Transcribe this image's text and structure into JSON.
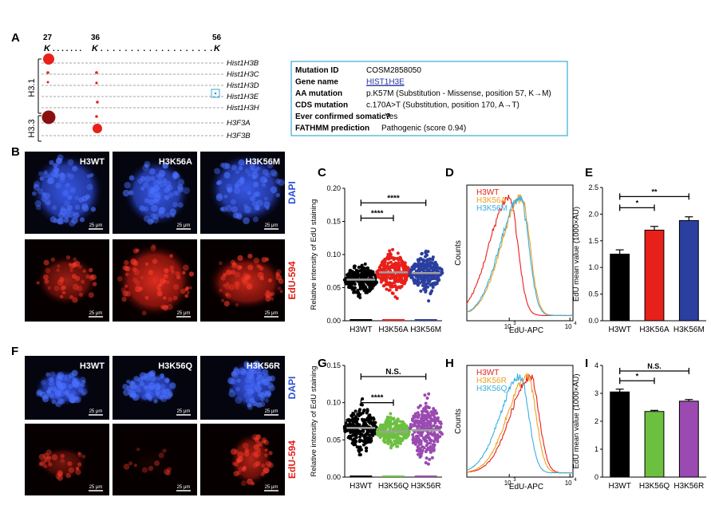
{
  "panel_letters": [
    "A",
    "B",
    "C",
    "D",
    "E",
    "F",
    "G",
    "H",
    "I"
  ],
  "panel_a": {
    "positions": [
      "27",
      "36",
      "56"
    ],
    "residue_line": [
      "K",
      ". . . . . . .",
      "K",
      ". . . . . . . . . . . . . . . . . . .",
      "K"
    ],
    "genes": [
      "Hist1H3B",
      "Hist1H3C",
      "Hist1H3D",
      "Hist1H3E",
      "Hist1H3H",
      "H3F3A",
      "H3F3B"
    ],
    "groups": [
      "H3.1",
      "H3.3"
    ],
    "mutation_table": [
      {
        "key": "Mutation ID",
        "value": "COSM2858050"
      },
      {
        "key": "Gene name",
        "value": "HIST1H3E"
      },
      {
        "key": "AA mutation",
        "value": "p.K57M (Substitution - Missense, position 57, K→M)"
      },
      {
        "key": "CDS mutation",
        "value": "c.170A>T (Substitution, position 170, A→T)"
      },
      {
        "key": "Ever confirmed somatic?",
        "value": "Yes"
      },
      {
        "key": "FATHMM prediction",
        "value": "Pathogenic (score 0.94)"
      }
    ]
  },
  "micrographs": {
    "top": {
      "labels": [
        "H3WT",
        "H3K56A",
        "H3K56M"
      ],
      "stains": [
        "DAPI",
        "EdU-594"
      ]
    },
    "bottom": {
      "labels": [
        "H3WT",
        "H3K56Q",
        "H3K56R"
      ],
      "stains": [
        "DAPI",
        "EdU-594"
      ]
    },
    "scale_bar": "25 μm",
    "colors": {
      "dapi": "#2d4fd6",
      "edu": "#e0201a"
    }
  },
  "chart_data": [
    {
      "panel": "C",
      "type": "scatter",
      "ylabel": "Relative intensity of EdU staining",
      "categories": [
        "H3WT",
        "H3K56A",
        "H3K56M"
      ],
      "ylim": [
        0,
        0.2
      ],
      "yticks": [
        "0.00",
        "0.05",
        "0.10",
        "0.15",
        "0.20"
      ],
      "series": [
        {
          "category": "H3WT",
          "mean": 0.062,
          "min": 0.035,
          "max": 0.098,
          "color": "#000000"
        },
        {
          "category": "H3K56A",
          "mean": 0.073,
          "min": 0.028,
          "max": 0.11,
          "color": "#e8201a"
        },
        {
          "category": "H3K56M",
          "mean": 0.072,
          "min": 0.03,
          "max": 0.105,
          "color": "#2a3f9e"
        }
      ],
      "significance": [
        {
          "from": "H3WT",
          "to": "H3K56A",
          "label": "****",
          "y": 0.155
        },
        {
          "from": "H3WT",
          "to": "H3K56M",
          "label": "****",
          "y": 0.178
        }
      ]
    },
    {
      "panel": "D",
      "type": "line",
      "xlabel": "EdU-APC",
      "ylabel": "Counts",
      "x_ticks": [
        "10",
        "3",
        "10",
        "4"
      ],
      "series": [
        {
          "name": "H3WT",
          "color": "#e8201a",
          "peak_log": 3.0
        },
        {
          "name": "H3K56A",
          "color": "#f0a020",
          "peak_log": 3.2
        },
        {
          "name": "H3K56M",
          "color": "#3ab0e0",
          "peak_log": 3.18
        }
      ]
    },
    {
      "panel": "E",
      "type": "bar",
      "ylabel": "EdU mean value (1000×AU)",
      "categories": [
        "H3WT",
        "H3K56A",
        "H3K56M"
      ],
      "values": [
        1.25,
        1.7,
        1.88
      ],
      "errors": [
        0.08,
        0.07,
        0.07
      ],
      "colors": [
        "#000000",
        "#e8201a",
        "#2a3f9e"
      ],
      "ylim": [
        0,
        2.5
      ],
      "yticks": [
        "0.0",
        "0.5",
        "1.0",
        "1.5",
        "2.0",
        "2.5"
      ],
      "significance": [
        {
          "from": "H3WT",
          "to": "H3K56A",
          "label": "*",
          "y": 2.12
        },
        {
          "from": "H3WT",
          "to": "H3K56M",
          "label": "**",
          "y": 2.33
        }
      ]
    },
    {
      "panel": "G",
      "type": "scatter",
      "ylabel": "Relative intensity of EdU staining",
      "categories": [
        "H3WT",
        "H3K56Q",
        "H3K56R"
      ],
      "ylim": [
        0,
        0.15
      ],
      "yticks": [
        "0.00",
        "0.05",
        "0.10",
        "0.15"
      ],
      "series": [
        {
          "category": "H3WT",
          "mean": 0.066,
          "min": 0.03,
          "max": 0.105,
          "color": "#000000"
        },
        {
          "category": "H3K56Q",
          "mean": 0.061,
          "min": 0.035,
          "max": 0.088,
          "color": "#6cc040"
        },
        {
          "category": "H3K56R",
          "mean": 0.063,
          "min": 0.005,
          "max": 0.112,
          "color": "#9a4ab0"
        }
      ],
      "significance": [
        {
          "from": "H3WT",
          "to": "H3K56Q",
          "label": "****",
          "y": 0.1
        },
        {
          "from": "H3WT",
          "to": "H3K56R",
          "label": "N.S.",
          "y": 0.135
        }
      ]
    },
    {
      "panel": "H",
      "type": "line",
      "xlabel": "EdU-APC",
      "ylabel": "Counts",
      "x_ticks": [
        "10",
        "3",
        "10",
        "4"
      ],
      "series": [
        {
          "name": "H3WT",
          "color": "#e8201a",
          "peak_log": 3.35
        },
        {
          "name": "H3K56R",
          "color": "#f0a020",
          "peak_log": 3.3
        },
        {
          "name": "H3K56Q",
          "color": "#3ab0e0",
          "peak_log": 3.18
        }
      ]
    },
    {
      "panel": "I",
      "type": "bar",
      "ylabel": "EdU mean value (1000×AU)",
      "categories": [
        "H3WT",
        "H3K56Q",
        "H3K56R"
      ],
      "values": [
        3.05,
        2.35,
        2.72
      ],
      "errors": [
        0.1,
        0.04,
        0.06
      ],
      "colors": [
        "#000000",
        "#6cc040",
        "#9a4ab0"
      ],
      "ylim": [
        0,
        4
      ],
      "yticks": [
        "0",
        "1",
        "2",
        "3",
        "4"
      ],
      "significance": [
        {
          "from": "H3WT",
          "to": "H3K56Q",
          "label": "*",
          "y": 3.45
        },
        {
          "from": "H3WT",
          "to": "H3K56R",
          "label": "N.S.",
          "y": 3.8
        }
      ]
    }
  ]
}
